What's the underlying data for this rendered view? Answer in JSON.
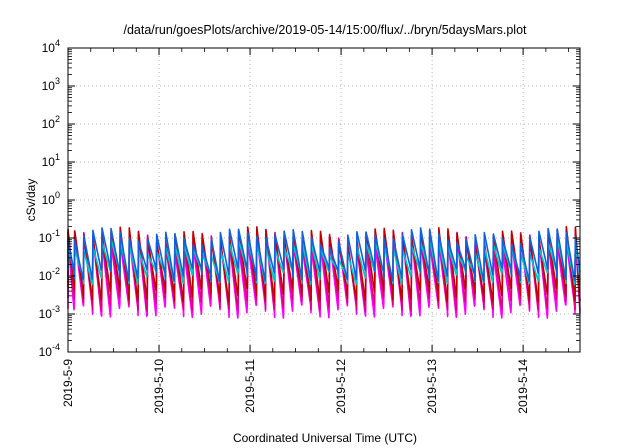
{
  "chart_data": {
    "type": "line",
    "title": "/data/run/goesPlots/archive/2019-05-14/15:00/flux/../bryn/5daysMars.plot",
    "xlabel": "Coordinated Universal Time (UTC)",
    "ylabel": "cSv/day",
    "yscale": "log",
    "ylim_exponents": [
      -4,
      4
    ],
    "y_tick_labels": [
      {
        "base": "10",
        "exp": "4"
      },
      {
        "base": "10",
        "exp": "3"
      },
      {
        "base": "10",
        "exp": "2"
      },
      {
        "base": "10",
        "exp": "1"
      },
      {
        "base": "10",
        "exp": "0"
      },
      {
        "base": "10",
        "exp": "-1"
      },
      {
        "base": "10",
        "exp": "-2"
      },
      {
        "base": "10",
        "exp": "-3"
      },
      {
        "base": "10",
        "exp": "-4"
      }
    ],
    "x_range": [
      "2019-05-09 00:00",
      "2019-05-14 15:00"
    ],
    "x_tick_labels": [
      "2019-5-9",
      "2019-5-10",
      "2019-5-11",
      "2019-5-12",
      "2019-5-13",
      "2019-5-14"
    ],
    "grid": true,
    "legend": "none",
    "sawtooth_period_hours": 2.4,
    "series": [
      {
        "color": "#ff00ff",
        "peak": 0.085,
        "trough": 0.0013
      },
      {
        "color": "#e00080",
        "peak": 0.11,
        "trough": 0.002
      },
      {
        "color": "#c00000",
        "peak": 0.13,
        "trough": 0.0035
      },
      {
        "color": "#00c8c8",
        "peak": 0.06,
        "trough": 0.01
      },
      {
        "color": "#1060e0",
        "peak": 0.12,
        "trough": 0.012
      }
    ]
  }
}
